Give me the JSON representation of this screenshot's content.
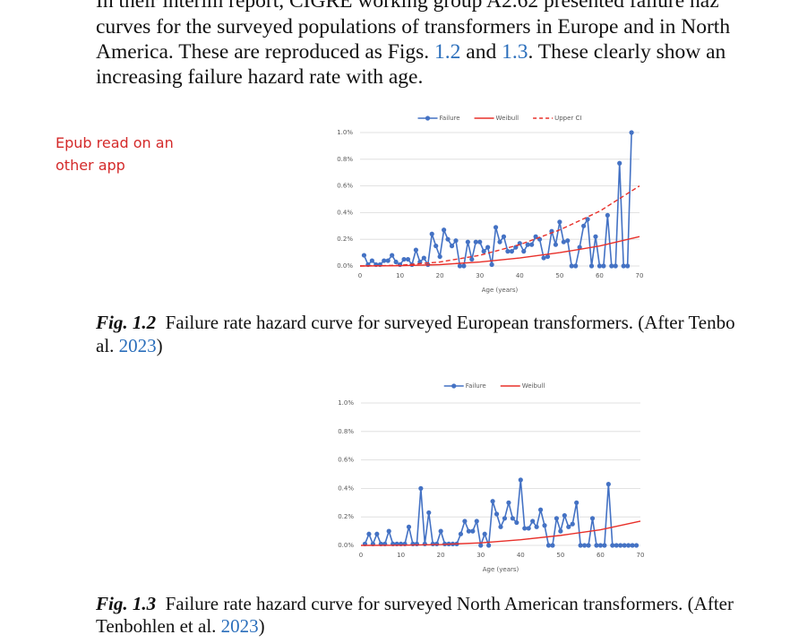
{
  "document": {
    "paragraph_lines": [
      [
        {
          "text": "In their interim report, CIGRE working group A2.62 presented failure haz"
        }
      ],
      [
        {
          "text": "curves for the surveyed populations of transformers in Europe and in North"
        }
      ],
      [
        {
          "text": "America. These are reproduced as Figs. "
        },
        {
          "text": "1.2",
          "style": "link"
        },
        {
          "text": " and "
        },
        {
          "text": "1.3",
          "style": "link"
        },
        {
          "text": ". These clearly show an"
        }
      ],
      [
        {
          "text": "increasing failure hazard rate with age."
        }
      ]
    ],
    "captions": [
      [
        [
          {
            "text": "Fig. 1.2",
            "style": "bold"
          },
          {
            "text": "  Failure rate hazard curve for surveyed European transformers. (After Tenbo"
          }
        ],
        [
          {
            "text": "al. "
          },
          {
            "text": "2023",
            "style": "link"
          },
          {
            "text": ")"
          }
        ]
      ],
      [
        [
          {
            "text": "Fig. 1.3",
            "style": "bold"
          },
          {
            "text": "  Failure rate hazard curve for surveyed North American transformers. (After"
          }
        ],
        [
          {
            "text": "Tenbohlen et al. "
          },
          {
            "text": "2023",
            "style": "link"
          },
          {
            "text": ")"
          }
        ]
      ]
    ],
    "note": [
      "Epub read on an",
      "other app"
    ]
  },
  "chart_data": [
    {
      "type": "line",
      "x_label": "Age (years)",
      "xlim": [
        0,
        70
      ],
      "xticks": [
        0,
        10,
        20,
        30,
        40,
        50,
        60,
        70
      ],
      "ylim": [
        0,
        1.0
      ],
      "yticks": [
        {
          "value": 0,
          "label": "0.0%"
        },
        {
          "value": 0.2,
          "label": "0.2%"
        },
        {
          "value": 0.4,
          "label": "0.4%"
        },
        {
          "value": 0.6,
          "label": "0.6%"
        },
        {
          "value": 0.8,
          "label": "0.8%"
        },
        {
          "value": 1.0,
          "label": "1.0%"
        }
      ],
      "grid": true,
      "legend": "top",
      "series": [
        {
          "name": "Failure",
          "color": "#4472c4",
          "markers": true,
          "x": [
            1,
            2,
            3,
            4,
            5,
            6,
            7,
            8,
            9,
            10,
            11,
            12,
            13,
            14,
            15,
            16,
            17,
            18,
            19,
            20,
            21,
            22,
            23,
            24,
            25,
            26,
            27,
            28,
            29,
            30,
            31,
            32,
            33,
            34,
            35,
            36,
            37,
            38,
            39,
            40,
            41,
            42,
            43,
            44,
            45,
            46,
            47,
            48,
            49,
            50,
            51,
            52,
            53,
            54,
            55,
            56,
            57,
            58,
            59,
            60,
            61,
            62,
            63,
            64,
            65,
            66,
            67,
            68
          ],
          "values": [
            0.08,
            0.01,
            0.04,
            0.01,
            0.01,
            0.04,
            0.04,
            0.08,
            0.03,
            0.01,
            0.05,
            0.05,
            0.01,
            0.12,
            0.03,
            0.06,
            0.01,
            0.24,
            0.15,
            0.07,
            0.27,
            0.2,
            0.15,
            0.19,
            0,
            0,
            0.18,
            0.05,
            0.18,
            0.18,
            0.11,
            0.14,
            0.01,
            0.29,
            0.18,
            0.22,
            0.11,
            0.11,
            0.14,
            0.17,
            0.11,
            0.16,
            0.16,
            0.22,
            0.2,
            0.06,
            0.07,
            0.26,
            0.16,
            0.33,
            0.18,
            0.19,
            0,
            0,
            0.14,
            0.3,
            0.35,
            0,
            0.22,
            0,
            0,
            0.38,
            0,
            0,
            0.77,
            0,
            0,
            1.0
          ]
        },
        {
          "name": "Weibull",
          "color": "#e8302a",
          "x": [
            0,
            10,
            20,
            30,
            40,
            50,
            60,
            70
          ],
          "values": [
            0,
            0.002,
            0.01,
            0.03,
            0.06,
            0.1,
            0.15,
            0.22
          ]
        },
        {
          "name": "Upper CI",
          "color": "#e8302a",
          "dashed": true,
          "x": [
            0,
            10,
            20,
            30,
            40,
            50,
            60,
            70
          ],
          "values": [
            0,
            0.005,
            0.03,
            0.08,
            0.16,
            0.27,
            0.41,
            0.6
          ]
        }
      ]
    },
    {
      "type": "line",
      "x_label": "Age (years)",
      "xlim": [
        0,
        70
      ],
      "xticks": [
        0,
        10,
        20,
        30,
        40,
        50,
        60,
        70
      ],
      "ylim": [
        0,
        1.0
      ],
      "yticks": [
        {
          "value": 0,
          "label": "0.0%"
        },
        {
          "value": 0.2,
          "label": "0.2%"
        },
        {
          "value": 0.4,
          "label": "0.4%"
        },
        {
          "value": 0.6,
          "label": "0.6%"
        },
        {
          "value": 0.8,
          "label": "0.8%"
        },
        {
          "value": 1.0,
          "label": "1.0%"
        }
      ],
      "grid": true,
      "legend": "top",
      "series": [
        {
          "name": "Failure",
          "color": "#4472c4",
          "markers": true,
          "x": [
            1,
            2,
            3,
            4,
            5,
            6,
            7,
            8,
            9,
            10,
            11,
            12,
            13,
            14,
            15,
            16,
            17,
            18,
            19,
            20,
            21,
            22,
            23,
            24,
            25,
            26,
            27,
            28,
            29,
            30,
            31,
            32,
            33,
            34,
            35,
            36,
            37,
            38,
            39,
            40,
            41,
            42,
            43,
            44,
            45,
            46,
            47,
            48,
            49,
            50,
            51,
            52,
            53,
            54,
            55,
            56,
            57,
            58,
            59,
            60,
            61,
            62,
            63,
            64,
            65,
            66,
            67,
            68,
            69
          ],
          "values": [
            0.01,
            0.08,
            0.01,
            0.08,
            0.01,
            0.01,
            0.1,
            0.01,
            0.01,
            0.01,
            0.01,
            0.13,
            0.01,
            0.01,
            0.4,
            0.01,
            0.23,
            0.01,
            0.01,
            0.1,
            0.01,
            0.01,
            0.01,
            0.01,
            0.08,
            0.17,
            0.1,
            0.1,
            0.17,
            0,
            0.08,
            0,
            0.31,
            0.22,
            0.13,
            0.19,
            0.3,
            0.19,
            0.16,
            0.46,
            0.12,
            0.12,
            0.17,
            0.13,
            0.25,
            0.14,
            0,
            0,
            0.19,
            0.1,
            0.21,
            0.13,
            0.15,
            0.3,
            0,
            0,
            0,
            0.19,
            0,
            0,
            0,
            0.43,
            0,
            0,
            0,
            0,
            0,
            0,
            0
          ]
        },
        {
          "name": "Weibull",
          "color": "#e8302a",
          "x": [
            0,
            10,
            20,
            30,
            40,
            50,
            60,
            70
          ],
          "values": [
            0,
            0.001,
            0.006,
            0.018,
            0.04,
            0.07,
            0.11,
            0.17
          ]
        }
      ]
    }
  ]
}
